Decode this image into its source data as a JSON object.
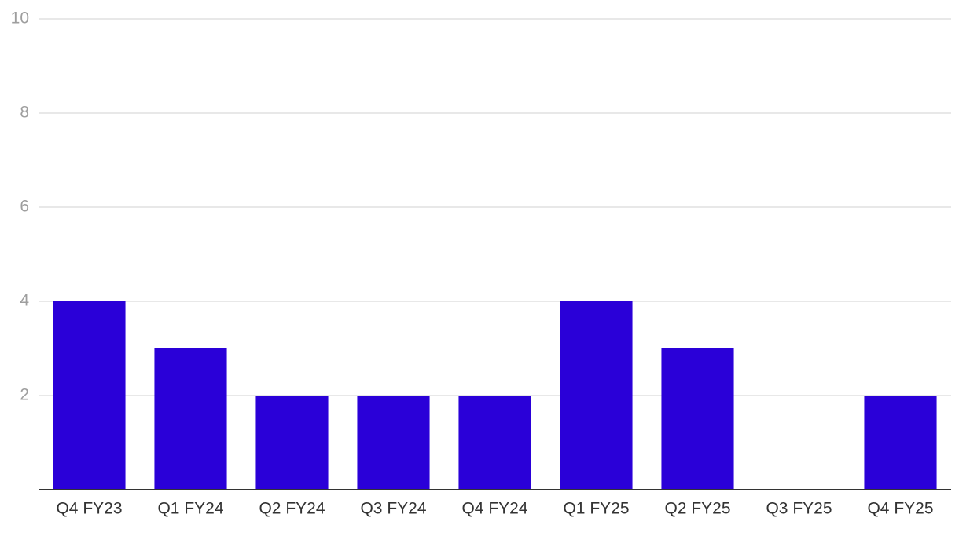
{
  "chart_data": {
    "type": "bar",
    "categories": [
      "Q4 FY23",
      "Q1 FY24",
      "Q2 FY24",
      "Q3 FY24",
      "Q4 FY24",
      "Q1 FY25",
      "Q2 FY25",
      "Q3 FY25",
      "Q4 FY25"
    ],
    "values": [
      4,
      3,
      2,
      2,
      2,
      4,
      3,
      0,
      2
    ],
    "color": "#2a00d8",
    "ylim": [
      0,
      10
    ],
    "yticks": [
      2,
      4,
      6,
      8,
      10
    ],
    "grid": true
  }
}
